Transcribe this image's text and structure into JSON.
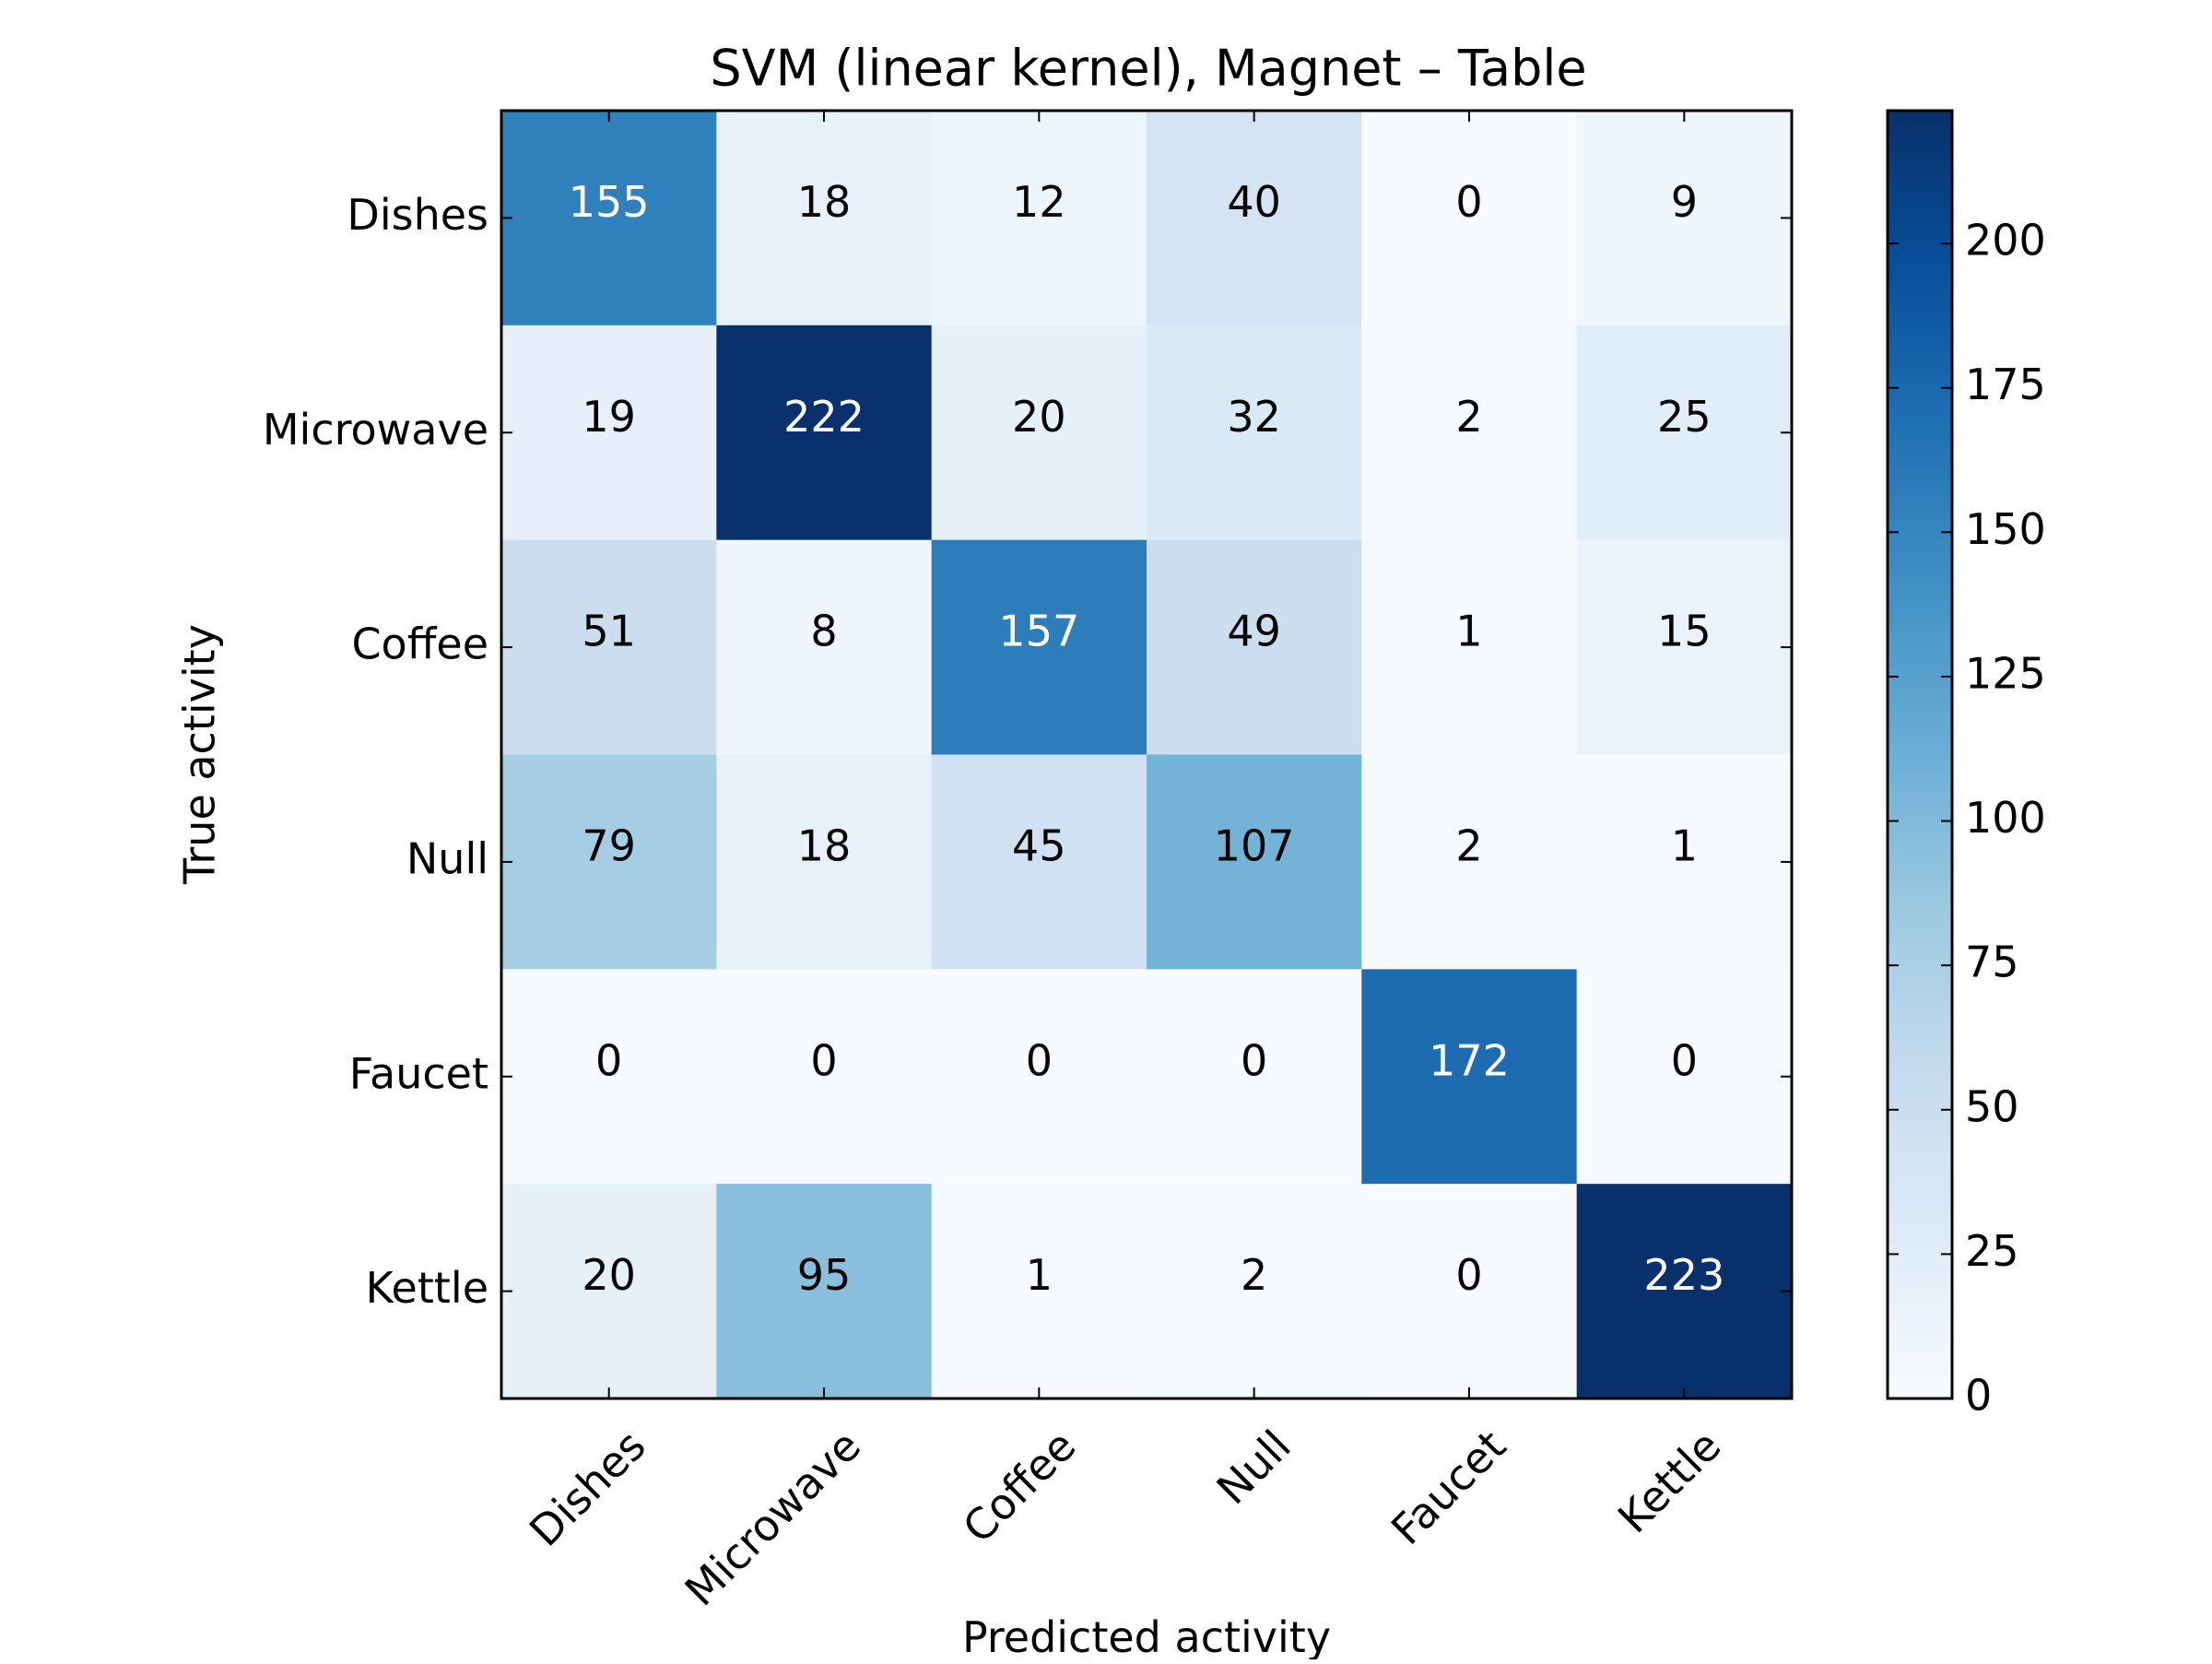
{
  "chart_data": {
    "type": "heatmap",
    "title": "SVM (linear kernel), Magnet – Table",
    "xlabel": "Predicted activity",
    "ylabel": "True activity",
    "x_categories": [
      "Dishes",
      "Microwave",
      "Coffee",
      "Null",
      "Faucet",
      "Kettle"
    ],
    "y_categories": [
      "Dishes",
      "Microwave",
      "Coffee",
      "Null",
      "Faucet",
      "Kettle"
    ],
    "values": [
      [
        155,
        18,
        12,
        40,
        0,
        9
      ],
      [
        19,
        222,
        20,
        32,
        2,
        25
      ],
      [
        51,
        8,
        157,
        49,
        1,
        15
      ],
      [
        79,
        18,
        45,
        107,
        2,
        1
      ],
      [
        0,
        0,
        0,
        0,
        172,
        0
      ],
      [
        20,
        95,
        1,
        2,
        0,
        223
      ]
    ],
    "colormap": "Blues",
    "colorbar": {
      "range": [
        0,
        223
      ],
      "ticks": [
        0,
        25,
        50,
        75,
        100,
        125,
        150,
        175,
        200
      ]
    },
    "grid": false,
    "text_color_light": "#ffffff",
    "text_color_dark": "#000000"
  }
}
